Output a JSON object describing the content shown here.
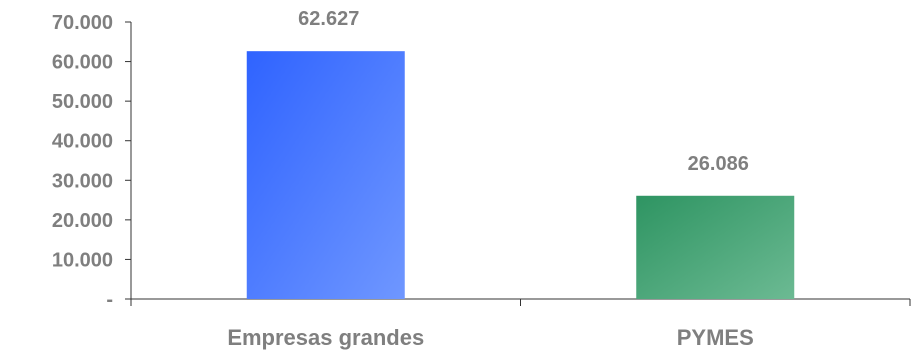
{
  "chart_data": {
    "type": "bar",
    "categories": [
      "Empresas grandes",
      "PYMES"
    ],
    "values": [
      62627,
      26086
    ],
    "value_labels": [
      "62.627",
      "26.086"
    ],
    "ylim": [
      0,
      70000
    ],
    "yticks": [
      0,
      10000,
      20000,
      30000,
      40000,
      50000,
      60000,
      70000
    ],
    "ytick_labels": [
      "-",
      "10.000",
      "20.000",
      "30.000",
      "40.000",
      "50.000",
      "60.000",
      "70.000"
    ],
    "grid": false,
    "legend": "none",
    "colors": {
      "bars": [
        {
          "start": "#2f63ff",
          "end": "#6f97ff"
        },
        {
          "start": "#2e9462",
          "end": "#6cba93"
        }
      ],
      "text": "#7f7f7f",
      "axis": "#333333"
    }
  }
}
